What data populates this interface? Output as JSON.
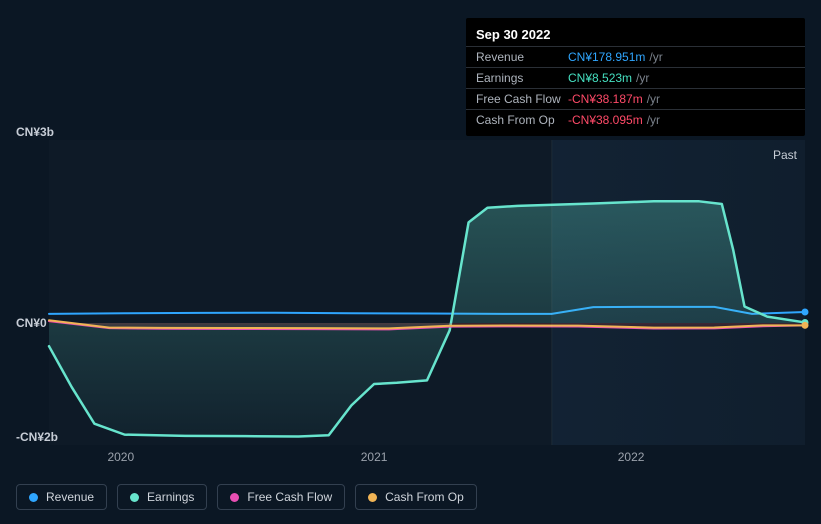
{
  "tooltip": {
    "title": "Sep 30 2022",
    "rows": [
      {
        "label": "Revenue",
        "value": "CN¥178.951m",
        "color": "#2fa6ff",
        "unit": "/yr"
      },
      {
        "label": "Earnings",
        "value": "CN¥8.523m",
        "color": "#45e0c1",
        "unit": "/yr"
      },
      {
        "label": "Free Cash Flow",
        "value": "-CN¥38.187m",
        "color": "#ff4a68",
        "unit": "/yr"
      },
      {
        "label": "Cash From Op",
        "value": "-CN¥38.095m",
        "color": "#ff4a68",
        "unit": "/yr"
      }
    ]
  },
  "chart": {
    "type": "area-line",
    "background_color": "#0b1724",
    "grid_visible": false,
    "past_label": "Past",
    "past_region_start": 0.665,
    "y_axis": {
      "min": -2000,
      "max": 3000,
      "ticks": [
        {
          "value": 3000,
          "label": "CN¥3b"
        },
        {
          "value": 0,
          "label": "CN¥0"
        },
        {
          "value": -2000,
          "label": "-CN¥2b"
        }
      ],
      "label_color": "#c7cdd6",
      "label_fontsize": 12
    },
    "x_axis": {
      "ticks": [
        {
          "pos": 0.095,
          "label": "2020"
        },
        {
          "pos": 0.43,
          "label": "2021"
        },
        {
          "pos": 0.77,
          "label": "2022"
        }
      ],
      "label_color": "#9ba2ac",
      "label_fontsize": 12
    },
    "series": [
      {
        "name": "Revenue",
        "color": "#2fa6ff",
        "line_width": 2,
        "fill_opacity": 0,
        "points": [
          [
            0.0,
            150
          ],
          [
            0.1,
            160
          ],
          [
            0.2,
            165
          ],
          [
            0.3,
            168
          ],
          [
            0.4,
            160
          ],
          [
            0.5,
            155
          ],
          [
            0.6,
            150
          ],
          [
            0.665,
            150
          ],
          [
            0.72,
            260
          ],
          [
            0.8,
            265
          ],
          [
            0.88,
            265
          ],
          [
            0.93,
            150
          ],
          [
            1.0,
            180
          ]
        ],
        "end_marker": true
      },
      {
        "name": "Earnings",
        "color": "#67e4cd",
        "line_width": 2.5,
        "fill_opacity": 0.15,
        "fill_gradient": [
          "rgba(103,228,205,0.28)",
          "rgba(103,228,205,0.04)"
        ],
        "points": [
          [
            0.0,
            -380
          ],
          [
            0.03,
            -1050
          ],
          [
            0.06,
            -1650
          ],
          [
            0.1,
            -1830
          ],
          [
            0.18,
            -1850
          ],
          [
            0.26,
            -1855
          ],
          [
            0.33,
            -1860
          ],
          [
            0.37,
            -1840
          ],
          [
            0.4,
            -1350
          ],
          [
            0.43,
            -1000
          ],
          [
            0.46,
            -980
          ],
          [
            0.5,
            -940
          ],
          [
            0.53,
            -120
          ],
          [
            0.555,
            1650
          ],
          [
            0.58,
            1890
          ],
          [
            0.62,
            1920
          ],
          [
            0.72,
            1960
          ],
          [
            0.8,
            1995
          ],
          [
            0.86,
            1995
          ],
          [
            0.89,
            1950
          ],
          [
            0.905,
            1200
          ],
          [
            0.92,
            270
          ],
          [
            0.95,
            105
          ],
          [
            1.0,
            9
          ]
        ],
        "end_marker": true
      },
      {
        "name": "Free Cash Flow",
        "color": "#e84fb3",
        "line_width": 2,
        "fill_opacity": 0.12,
        "fill_gradient": [
          "rgba(200,60,60,0.30)",
          "rgba(200,60,60,0.05)"
        ],
        "points": [
          [
            0.0,
            30
          ],
          [
            0.08,
            -85
          ],
          [
            0.15,
            -95
          ],
          [
            0.25,
            -98
          ],
          [
            0.35,
            -100
          ],
          [
            0.45,
            -105
          ],
          [
            0.53,
            -60
          ],
          [
            0.6,
            -55
          ],
          [
            0.7,
            -58
          ],
          [
            0.8,
            -90
          ],
          [
            0.88,
            -88
          ],
          [
            0.94,
            -55
          ],
          [
            1.0,
            -38
          ]
        ],
        "end_marker": false
      },
      {
        "name": "Cash From Op",
        "color": "#f0b455",
        "line_width": 2,
        "fill_opacity": 0,
        "points": [
          [
            0.0,
            45
          ],
          [
            0.08,
            -75
          ],
          [
            0.15,
            -80
          ],
          [
            0.25,
            -82
          ],
          [
            0.35,
            -85
          ],
          [
            0.45,
            -88
          ],
          [
            0.53,
            -45
          ],
          [
            0.6,
            -40
          ],
          [
            0.7,
            -44
          ],
          [
            0.8,
            -75
          ],
          [
            0.88,
            -74
          ],
          [
            0.94,
            -40
          ],
          [
            1.0,
            -38
          ]
        ],
        "end_marker": true
      }
    ]
  },
  "legend": {
    "border_color": "#334050",
    "text_color": "#cfd4db",
    "items": [
      {
        "label": "Revenue",
        "color": "#2fa6ff"
      },
      {
        "label": "Earnings",
        "color": "#67e4cd"
      },
      {
        "label": "Free Cash Flow",
        "color": "#e84fb3"
      },
      {
        "label": "Cash From Op",
        "color": "#f0b455"
      }
    ]
  }
}
